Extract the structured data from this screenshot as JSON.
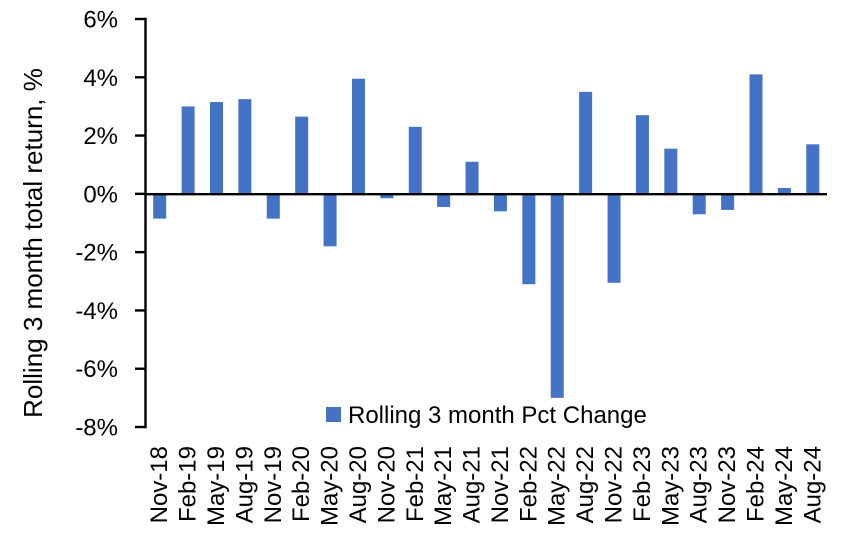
{
  "chart_data": {
    "type": "bar",
    "title": "",
    "xlabel": "",
    "ylabel": "Rolling 3 month total return, %",
    "ylim": [
      -8,
      6
    ],
    "ytick_step": 2,
    "ytick_labels": [
      "6%",
      "4%",
      "2%",
      "0%",
      "-2%",
      "-4%",
      "-6%",
      "-8%"
    ],
    "grid": false,
    "legend": {
      "position": "bottom-center",
      "label": "Rolling 3 month Pct Change"
    },
    "bar_color": "#4472C4",
    "axis_color": "#000000",
    "categories": [
      "Nov-18",
      "Feb-19",
      "May-19",
      "Aug-19",
      "Nov-19",
      "Feb-20",
      "May-20",
      "Aug-20",
      "Nov-20",
      "Feb-21",
      "May-21",
      "Aug-21",
      "Nov-21",
      "Feb-22",
      "May-22",
      "Aug-22",
      "Nov-22",
      "Feb-23",
      "May-23",
      "Aug-23",
      "Nov-23",
      "Feb-24",
      "May-24",
      "Aug-24"
    ],
    "values": [
      -0.85,
      3.0,
      3.15,
      3.25,
      -0.85,
      2.65,
      -1.8,
      3.95,
      -0.15,
      2.3,
      -0.45,
      1.1,
      -0.6,
      -3.1,
      -7.0,
      3.5,
      -3.05,
      2.7,
      1.55,
      -0.7,
      -0.55,
      4.1,
      0.2,
      1.7
    ]
  }
}
